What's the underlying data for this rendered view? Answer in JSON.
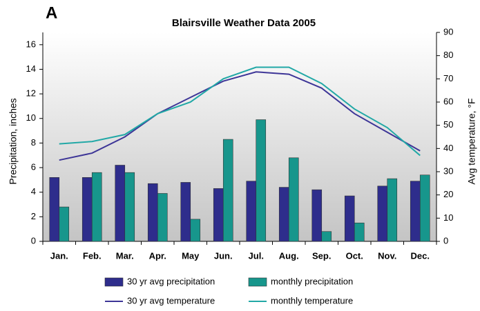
{
  "chart_data": {
    "type": "bar",
    "panel_label": "A",
    "title": "Blairsville Weather Data 2005",
    "y_label": "Precipitation, inches",
    "y2_label": "Avg temperature, °F",
    "categories": [
      "Jan.",
      "Feb.",
      "Mar.",
      "Apr.",
      "May",
      "Jun.",
      "Jul.",
      "Aug.",
      "Sep.",
      "Oct.",
      "Nov.",
      "Dec."
    ],
    "series": [
      {
        "name": "30 yr avg precipitation",
        "type": "bar",
        "color": "#2e2d8c",
        "values": [
          5.2,
          5.2,
          6.2,
          4.7,
          4.8,
          4.3,
          4.9,
          4.4,
          4.2,
          3.7,
          4.5,
          4.9
        ]
      },
      {
        "name": "monthly precipitation",
        "type": "bar",
        "color": "#17968c",
        "values": [
          2.8,
          5.6,
          5.6,
          3.9,
          1.8,
          8.3,
          9.9,
          6.8,
          0.8,
          1.5,
          5.1,
          5.4
        ]
      },
      {
        "name": "30 yr avg temperature",
        "type": "line",
        "axis": "y2",
        "color": "#3d3597",
        "values": [
          35,
          38,
          45,
          55,
          62,
          69,
          73,
          72,
          66,
          55,
          47,
          39
        ]
      },
      {
        "name": "monthly temperature",
        "type": "line",
        "axis": "y2",
        "color": "#21a8a6",
        "values": [
          42,
          43,
          46,
          55,
          60,
          70,
          75,
          75,
          68,
          57,
          49,
          37
        ]
      }
    ],
    "ylim": [
      0,
      17
    ],
    "yticks": [
      0,
      2,
      4,
      6,
      8,
      10,
      12,
      14,
      16
    ],
    "y2lim": [
      0,
      90
    ],
    "y2ticks": [
      0,
      10,
      20,
      30,
      40,
      50,
      60,
      70,
      80,
      90
    ]
  }
}
